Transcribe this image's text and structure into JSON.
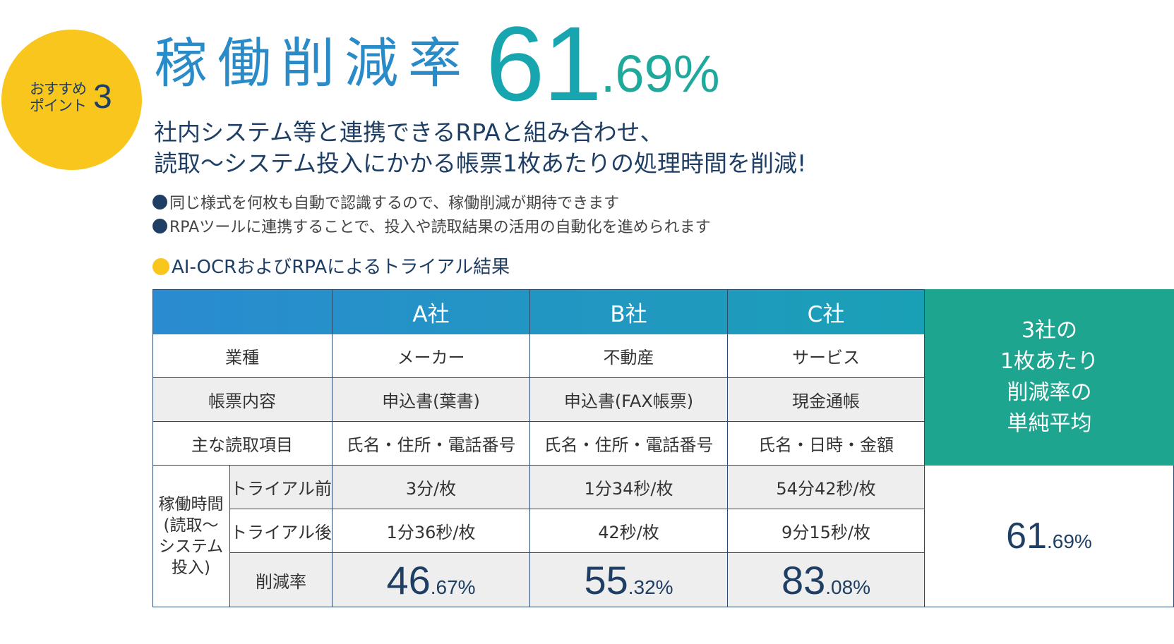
{
  "badge": {
    "label_line1": "おすすめ",
    "label_line2": "ポイント",
    "number": "3"
  },
  "headline": {
    "text": "稼働削減率",
    "value_int": "61",
    "value_dec": ".69%"
  },
  "subheading": {
    "line1": "社内システム等と連携できるRPAと組み合わせ、",
    "line2": "読取～システム投入にかかる帳票1枚あたりの処理時間を削減!"
  },
  "bullets": [
    "同じ様式を何枚も自動で認識するので、稼働削減が期待できます",
    "RPAツールに連携することで、投入や読取結果の活用の自動化を進められます"
  ],
  "trial_heading": "AI-OCRおよびRPAによるトライアル結果",
  "table": {
    "companies": [
      "A社",
      "B社",
      "C社"
    ],
    "rows": [
      {
        "label": "業種",
        "values": [
          "メーカー",
          "不動産",
          "サービス"
        ]
      },
      {
        "label": "帳票内容",
        "values": [
          "申込書(葉書)",
          "申込書(FAX帳票)",
          "現金通帳"
        ]
      },
      {
        "label": "主な読取項目",
        "values": [
          "氏名・住所・電話番号",
          "氏名・住所・電話番号",
          "氏名・日時・金額"
        ]
      }
    ],
    "group_label": [
      "稼働時間",
      "(読取～",
      "システム",
      "投入)"
    ],
    "before": {
      "label": "トライアル前",
      "values": [
        "3分/枚",
        "1分34秒/枚",
        "54分42秒/枚"
      ]
    },
    "after": {
      "label": "トライアル後",
      "values": [
        "1分36秒/枚",
        "42秒/枚",
        "9分15秒/枚"
      ]
    },
    "reduction": {
      "label": "削減率",
      "values": [
        {
          "int": "46",
          "dec": ".67%"
        },
        {
          "int": "55",
          "dec": ".32%"
        },
        {
          "int": "83",
          "dec": ".08%"
        }
      ]
    },
    "average_header": [
      "3社の",
      "1枚あたり",
      "削減率の",
      "単純平均"
    ],
    "average_value": {
      "int": "61",
      "dec": ".69%"
    }
  },
  "colors": {
    "badge": "#f8c61d",
    "navy": "#1f3e63",
    "header_blue": "#2a8bd0",
    "header_teal": "#1ea58f",
    "row_gray": "#eeeeee"
  }
}
